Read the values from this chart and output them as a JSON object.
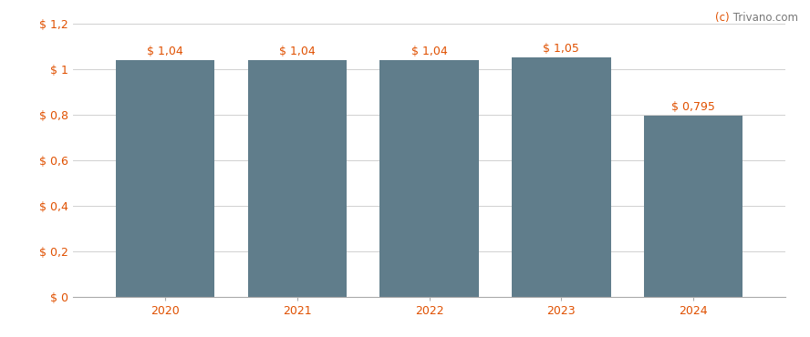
{
  "years": [
    2020,
    2021,
    2022,
    2023,
    2024
  ],
  "values": [
    1.04,
    1.04,
    1.04,
    1.05,
    0.795
  ],
  "bar_color": "#607d8b",
  "bar_labels": [
    "$ 1,04",
    "$ 1,04",
    "$ 1,04",
    "$ 1,05",
    "$ 0,795"
  ],
  "ylim": [
    0,
    1.2
  ],
  "yticks": [
    0,
    0.2,
    0.4,
    0.6,
    0.8,
    1.0,
    1.2
  ],
  "ytick_labels": [
    "$ 0",
    "$ 0,2",
    "$ 0,4",
    "$ 0,6",
    "$ 0,8",
    "$ 1",
    "$ 1,2"
  ],
  "background_color": "#ffffff",
  "grid_color": "#d0d0d0",
  "watermark_color_c": "#e05000",
  "watermark_color_rest": "#777777",
  "bar_width": 0.75,
  "label_fontsize": 9,
  "tick_fontsize": 9,
  "tick_color": "#e05000",
  "watermark_fontsize": 8.5
}
